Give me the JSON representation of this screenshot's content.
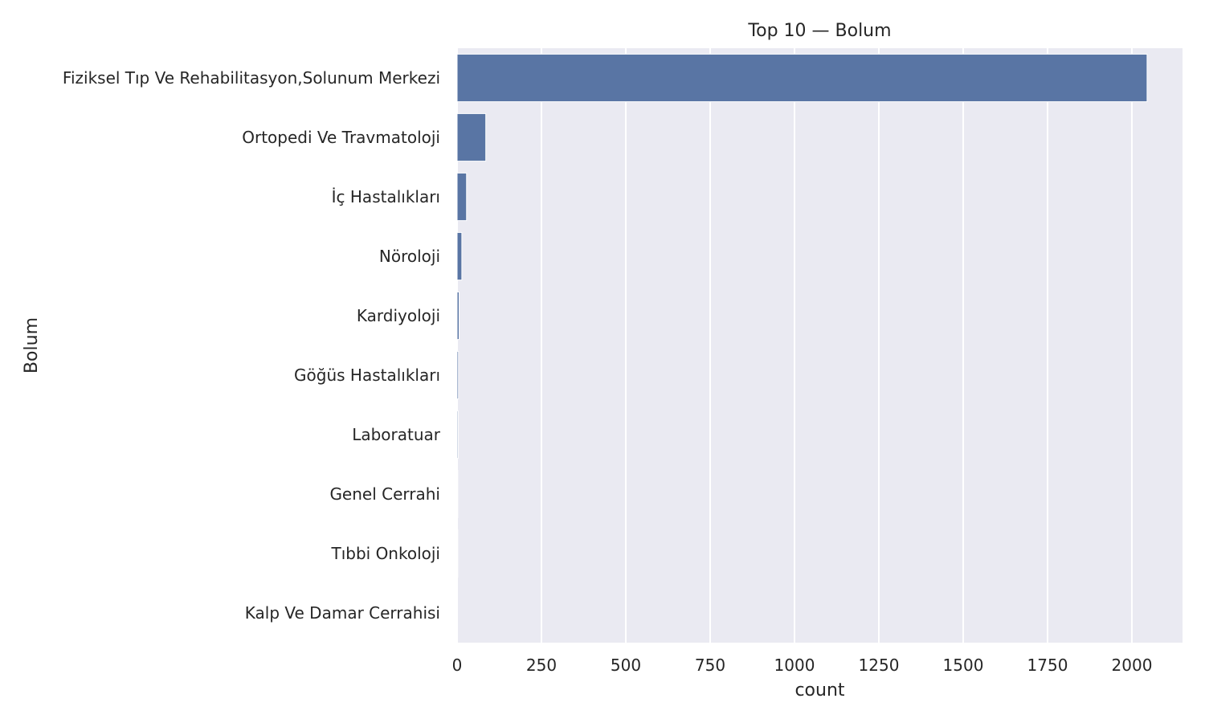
{
  "chart_data": {
    "type": "bar",
    "orientation": "horizontal",
    "title": "Top 10 — Bolum",
    "xlabel": "count",
    "ylabel": "Bolum",
    "xlim": [
      0,
      2150
    ],
    "xticks": [
      0,
      250,
      500,
      750,
      1000,
      1250,
      1500,
      1750,
      2000
    ],
    "grid": true,
    "categories": [
      "Fiziksel Tıp Ve Rehabilitasyon,Solunum Merkezi",
      "Ortopedi Ve Travmatoloji",
      "İç Hastalıkları",
      "Nöroloji",
      "Kardiyoloji",
      "Göğüs Hastalıkları",
      "Laboratuar",
      "Genel Cerrahi",
      "Tıbbi Onkoloji",
      "Kalp Ve Damar Cerrahisi"
    ],
    "values": [
      2045,
      85,
      28,
      14,
      6,
      4,
      3,
      2,
      2,
      1
    ],
    "colors": {
      "bar": "#5975a4",
      "plot_bg": "#eaeaf2",
      "grid": "#ffffff",
      "text": "#262626"
    }
  }
}
